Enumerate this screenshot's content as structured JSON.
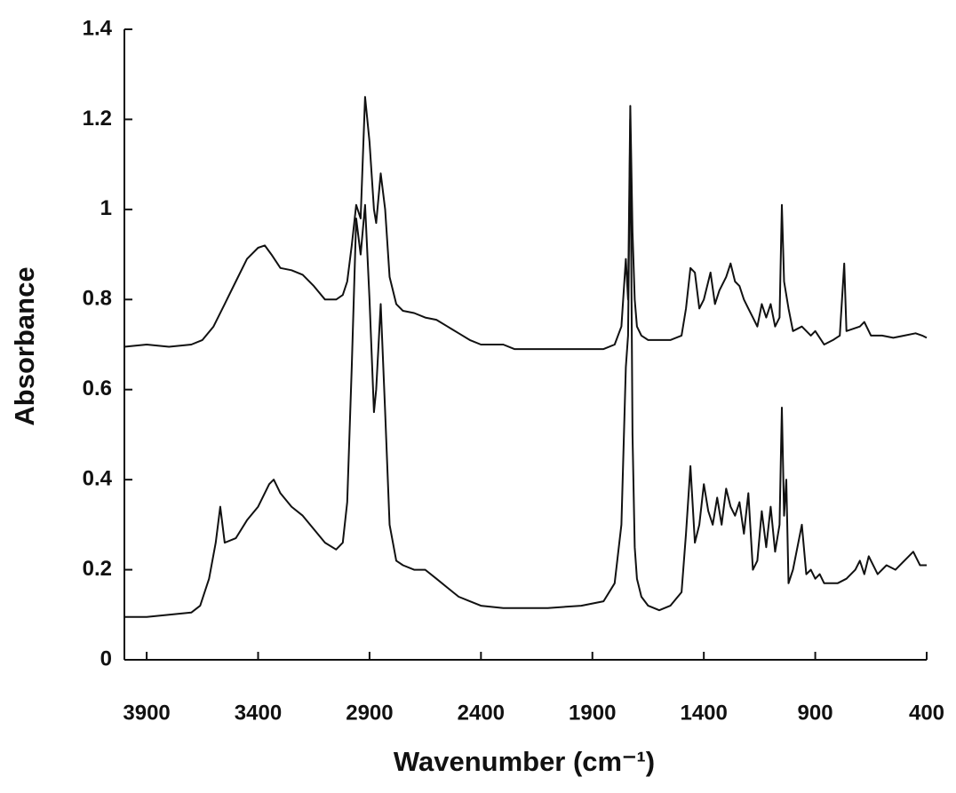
{
  "chart_data": {
    "type": "line",
    "xlabel": "Wavenumber (cm⁻¹)",
    "ylabel": "Absorbance",
    "xlim": [
      4000,
      400
    ],
    "ylim": [
      0,
      1.4
    ],
    "xticks": [
      3900,
      3400,
      2900,
      2400,
      1900,
      1400,
      900,
      400
    ],
    "yticks": [
      0,
      0.2,
      0.4,
      0.6,
      0.8,
      1,
      1.2,
      1.4
    ],
    "series": [
      {
        "color": "#111111",
        "x": [
          4000,
          3900,
          3800,
          3700,
          3650,
          3600,
          3550,
          3500,
          3450,
          3400,
          3370,
          3340,
          3300,
          3250,
          3200,
          3150,
          3100,
          3050,
          3020,
          3000,
          2980,
          2960,
          2940,
          2920,
          2900,
          2880,
          2870,
          2850,
          2830,
          2810,
          2780,
          2750,
          2700,
          2650,
          2600,
          2550,
          2500,
          2450,
          2400,
          2300,
          2250,
          2100,
          1950,
          1850,
          1800,
          1770,
          1750,
          1740,
          1730,
          1720,
          1710,
          1700,
          1680,
          1650,
          1600,
          1550,
          1500,
          1480,
          1460,
          1440,
          1420,
          1400,
          1380,
          1370,
          1350,
          1330,
          1300,
          1280,
          1260,
          1240,
          1220,
          1200,
          1180,
          1160,
          1140,
          1120,
          1100,
          1080,
          1060,
          1050,
          1040,
          1020,
          1000,
          960,
          920,
          900,
          860,
          820,
          790,
          770,
          760,
          700,
          680,
          650,
          600,
          550,
          500,
          450,
          420,
          400
        ],
        "values": [
          0.695,
          0.7,
          0.695,
          0.7,
          0.71,
          0.74,
          0.79,
          0.84,
          0.89,
          0.915,
          0.92,
          0.9,
          0.87,
          0.865,
          0.855,
          0.83,
          0.8,
          0.8,
          0.81,
          0.84,
          0.92,
          1.01,
          0.98,
          1.25,
          1.15,
          1.0,
          0.97,
          1.08,
          1.0,
          0.85,
          0.79,
          0.775,
          0.77,
          0.76,
          0.755,
          0.74,
          0.725,
          0.71,
          0.7,
          0.7,
          0.69,
          0.69,
          0.69,
          0.69,
          0.7,
          0.74,
          0.89,
          0.8,
          1.23,
          0.95,
          0.8,
          0.74,
          0.72,
          0.71,
          0.71,
          0.71,
          0.72,
          0.78,
          0.87,
          0.86,
          0.78,
          0.8,
          0.84,
          0.86,
          0.79,
          0.82,
          0.85,
          0.88,
          0.84,
          0.83,
          0.8,
          0.78,
          0.76,
          0.74,
          0.79,
          0.76,
          0.79,
          0.74,
          0.76,
          1.01,
          0.84,
          0.78,
          0.73,
          0.74,
          0.72,
          0.73,
          0.7,
          0.71,
          0.72,
          0.88,
          0.73,
          0.74,
          0.75,
          0.72,
          0.72,
          0.715,
          0.72,
          0.725,
          0.72,
          0.715
        ]
      },
      {
        "color": "#111111",
        "x": [
          4000,
          3900,
          3800,
          3700,
          3660,
          3620,
          3590,
          3570,
          3550,
          3500,
          3450,
          3400,
          3350,
          3330,
          3300,
          3250,
          3200,
          3150,
          3100,
          3050,
          3020,
          3000,
          2980,
          2960,
          2940,
          2920,
          2900,
          2880,
          2870,
          2850,
          2830,
          2810,
          2780,
          2750,
          2700,
          2650,
          2600,
          2550,
          2500,
          2450,
          2400,
          2300,
          2100,
          1950,
          1850,
          1800,
          1770,
          1750,
          1740,
          1730,
          1720,
          1710,
          1700,
          1680,
          1650,
          1600,
          1550,
          1500,
          1480,
          1460,
          1440,
          1420,
          1400,
          1380,
          1360,
          1340,
          1320,
          1300,
          1280,
          1260,
          1240,
          1220,
          1200,
          1180,
          1160,
          1140,
          1120,
          1100,
          1080,
          1060,
          1050,
          1040,
          1030,
          1020,
          1000,
          960,
          940,
          920,
          900,
          880,
          860,
          800,
          760,
          720,
          700,
          680,
          660,
          620,
          580,
          540,
          500,
          460,
          430,
          400
        ],
        "values": [
          0.095,
          0.095,
          0.1,
          0.105,
          0.12,
          0.18,
          0.26,
          0.34,
          0.26,
          0.27,
          0.31,
          0.34,
          0.39,
          0.4,
          0.37,
          0.34,
          0.32,
          0.29,
          0.26,
          0.245,
          0.26,
          0.35,
          0.65,
          0.98,
          0.9,
          1.01,
          0.8,
          0.55,
          0.6,
          0.79,
          0.55,
          0.3,
          0.22,
          0.21,
          0.2,
          0.2,
          0.18,
          0.16,
          0.14,
          0.13,
          0.12,
          0.115,
          0.115,
          0.12,
          0.13,
          0.17,
          0.3,
          0.65,
          0.72,
          1.2,
          0.5,
          0.25,
          0.18,
          0.14,
          0.12,
          0.11,
          0.12,
          0.15,
          0.28,
          0.43,
          0.26,
          0.3,
          0.39,
          0.33,
          0.3,
          0.36,
          0.3,
          0.38,
          0.34,
          0.32,
          0.35,
          0.28,
          0.37,
          0.2,
          0.22,
          0.33,
          0.25,
          0.34,
          0.24,
          0.3,
          0.56,
          0.32,
          0.4,
          0.17,
          0.2,
          0.3,
          0.19,
          0.2,
          0.18,
          0.19,
          0.17,
          0.17,
          0.18,
          0.2,
          0.22,
          0.19,
          0.23,
          0.19,
          0.21,
          0.2,
          0.22,
          0.24,
          0.21,
          0.21
        ]
      }
    ]
  }
}
